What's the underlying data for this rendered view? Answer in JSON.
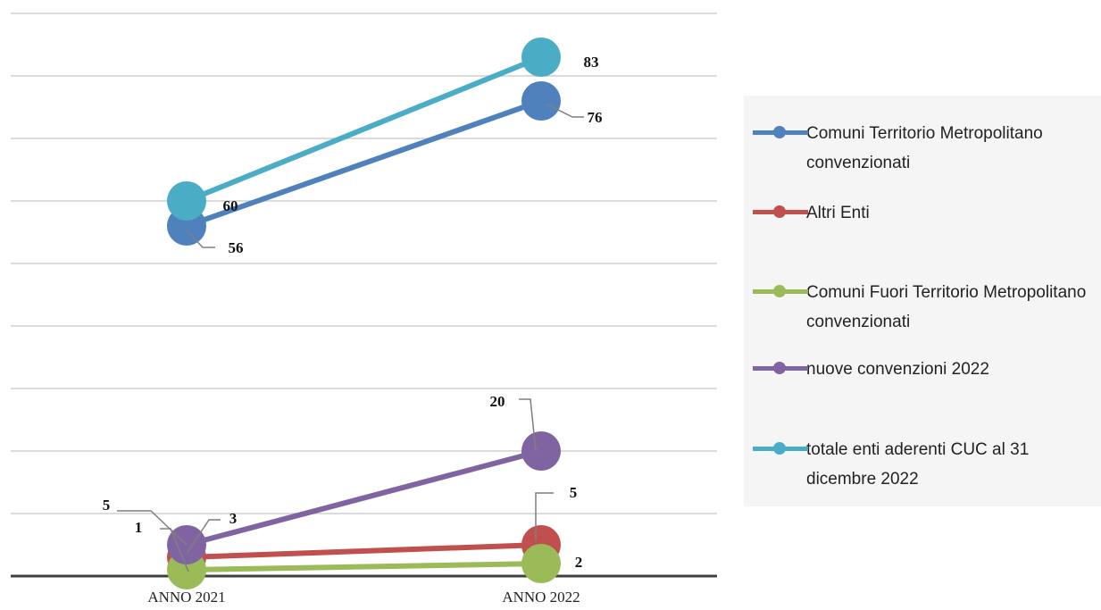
{
  "chart_data": {
    "type": "line",
    "categories": [
      "ANNO 2021",
      "ANNO 2022"
    ],
    "ylim": [
      0,
      90
    ],
    "grid": true,
    "legend_position": "right",
    "series": [
      {
        "name": "Comuni Territorio Metropolitano convenzionati",
        "color": "#4f81bd",
        "values": [
          56,
          76
        ]
      },
      {
        "name": "Altri Enti",
        "color": "#c0504d",
        "values": [
          3,
          5
        ]
      },
      {
        "name": "Comuni Fuori Territorio Metropolitano convenzionati",
        "color": "#9bbb59",
        "values": [
          1,
          2
        ]
      },
      {
        "name": "nuove convenzioni 2022",
        "color": "#8064a2",
        "values": [
          5,
          20
        ]
      },
      {
        "name": "totale enti aderenti CUC al 31 dicembre 2022",
        "color": "#4bacc6",
        "values": [
          60,
          83
        ]
      }
    ]
  }
}
